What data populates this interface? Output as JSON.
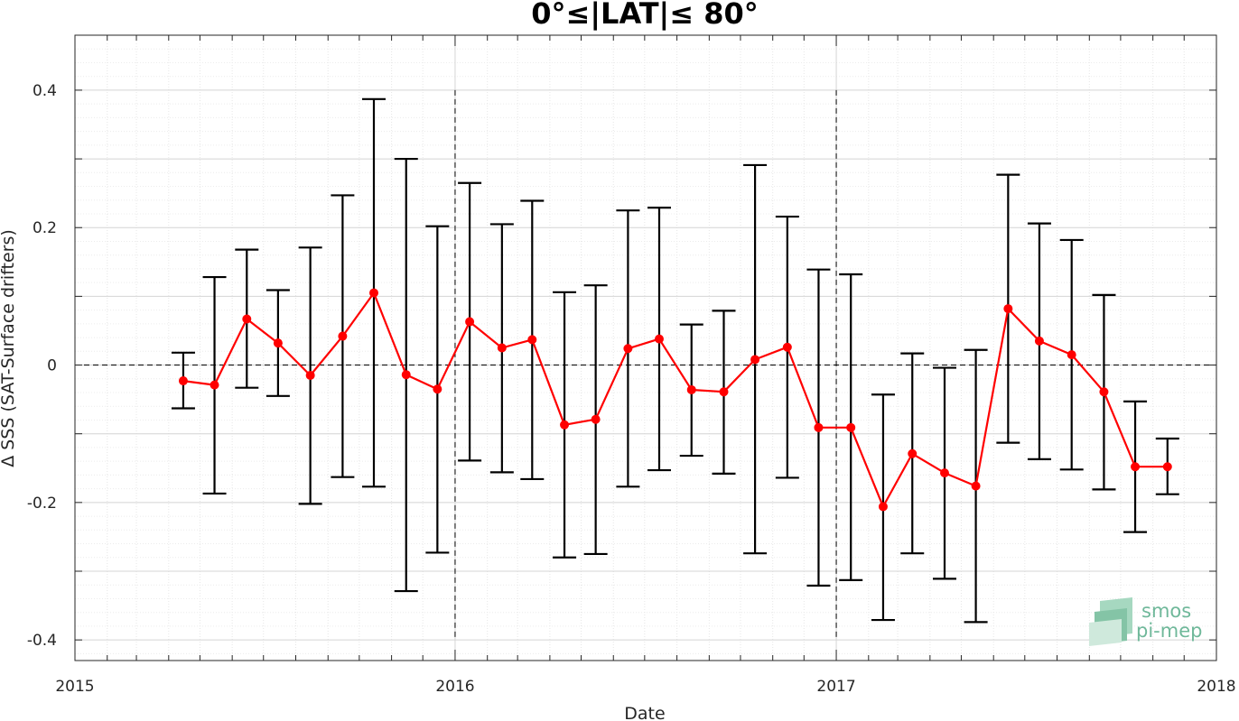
{
  "chart_data": {
    "type": "line",
    "title": "0°≤|LAT|≤ 80°",
    "xlabel": "Date",
    "ylabel": "Δ SSS (SAT-Surface drifters)",
    "xlim": [
      "2015-01-01",
      "2018-01-01"
    ],
    "ylim": [
      -0.43,
      0.48
    ],
    "x_ticks": [
      "2015",
      "2016",
      "2017",
      "2018"
    ],
    "y_ticks": [
      -0.4,
      -0.2,
      0,
      0.2,
      0.4
    ],
    "y_tick_labels": [
      "-0.4",
      "-0.2",
      "0",
      "0.2",
      "0.4"
    ],
    "grid": true,
    "minor_grid": true,
    "reference_lines": {
      "horizontal_y": 0,
      "vertical_x": [
        "2016-01-01",
        "2017-01-01"
      ]
    },
    "series": [
      {
        "color": "#ff0000",
        "errorbar_color": "#000000",
        "points": [
          {
            "x": "2015-04-15",
            "y": -0.023,
            "low": -0.063,
            "high": 0.018
          },
          {
            "x": "2015-05-15",
            "y": -0.029,
            "low": -0.187,
            "high": 0.128
          },
          {
            "x": "2015-06-15",
            "y": 0.067,
            "low": -0.033,
            "high": 0.168
          },
          {
            "x": "2015-07-15",
            "y": 0.032,
            "low": -0.045,
            "high": 0.109
          },
          {
            "x": "2015-08-15",
            "y": -0.015,
            "low": -0.202,
            "high": 0.171
          },
          {
            "x": "2015-09-15",
            "y": 0.042,
            "low": -0.163,
            "high": 0.247
          },
          {
            "x": "2015-10-15",
            "y": 0.105,
            "low": -0.177,
            "high": 0.387
          },
          {
            "x": "2015-11-15",
            "y": -0.014,
            "low": -0.329,
            "high": 0.3
          },
          {
            "x": "2015-12-15",
            "y": -0.035,
            "low": -0.273,
            "high": 0.202
          },
          {
            "x": "2016-01-15",
            "y": 0.063,
            "low": -0.139,
            "high": 0.265
          },
          {
            "x": "2016-02-15",
            "y": 0.025,
            "low": -0.156,
            "high": 0.205
          },
          {
            "x": "2016-03-15",
            "y": 0.037,
            "low": -0.166,
            "high": 0.239
          },
          {
            "x": "2016-04-15",
            "y": -0.087,
            "low": -0.28,
            "high": 0.106
          },
          {
            "x": "2016-05-15",
            "y": -0.079,
            "low": -0.275,
            "high": 0.116
          },
          {
            "x": "2016-06-15",
            "y": 0.024,
            "low": -0.177,
            "high": 0.225
          },
          {
            "x": "2016-07-15",
            "y": 0.038,
            "low": -0.153,
            "high": 0.229
          },
          {
            "x": "2016-08-15",
            "y": -0.036,
            "low": -0.132,
            "high": 0.059
          },
          {
            "x": "2016-09-15",
            "y": -0.039,
            "low": -0.158,
            "high": 0.079
          },
          {
            "x": "2016-10-15",
            "y": 0.008,
            "low": -0.274,
            "high": 0.291
          },
          {
            "x": "2016-11-15",
            "y": 0.026,
            "low": -0.164,
            "high": 0.216
          },
          {
            "x": "2016-12-15",
            "y": -0.091,
            "low": -0.321,
            "high": 0.139
          },
          {
            "x": "2017-01-15",
            "y": -0.091,
            "low": -0.313,
            "high": 0.132
          },
          {
            "x": "2017-02-15",
            "y": -0.206,
            "low": -0.371,
            "high": -0.043
          },
          {
            "x": "2017-03-15",
            "y": -0.129,
            "low": -0.274,
            "high": 0.017
          },
          {
            "x": "2017-04-15",
            "y": -0.157,
            "low": -0.311,
            "high": -0.004
          },
          {
            "x": "2017-05-15",
            "y": -0.176,
            "low": -0.374,
            "high": 0.022
          },
          {
            "x": "2017-06-15",
            "y": 0.082,
            "low": -0.113,
            "high": 0.277
          },
          {
            "x": "2017-07-15",
            "y": 0.035,
            "low": -0.137,
            "high": 0.206
          },
          {
            "x": "2017-08-15",
            "y": 0.015,
            "low": -0.152,
            "high": 0.182
          },
          {
            "x": "2017-09-15",
            "y": -0.039,
            "low": -0.181,
            "high": 0.102
          },
          {
            "x": "2017-10-15",
            "y": -0.148,
            "low": -0.243,
            "high": -0.053
          },
          {
            "x": "2017-11-15",
            "y": -0.148,
            "low": -0.188,
            "high": -0.107
          }
        ]
      }
    ]
  },
  "logo": {
    "line1": "smos",
    "line2": "pi-mep",
    "color": "#6fb89a"
  }
}
